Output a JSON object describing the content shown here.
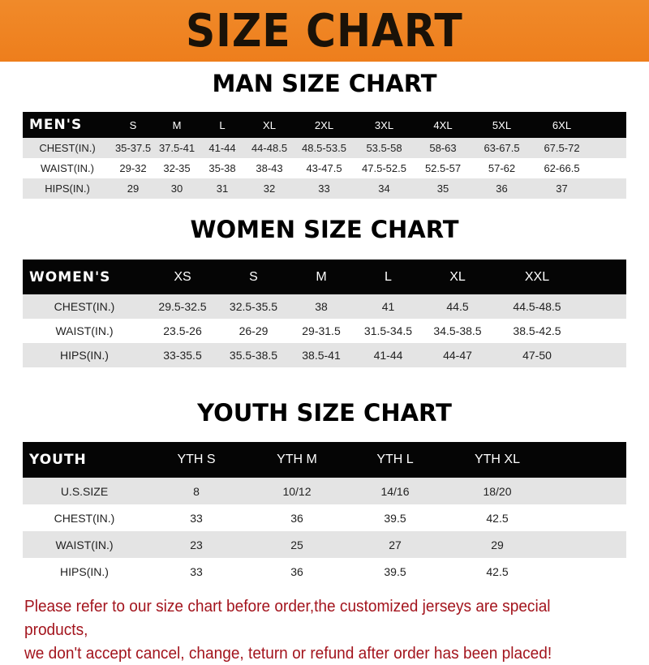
{
  "banner_title": "SIZE CHART",
  "men": {
    "title": "MAN SIZE CHART",
    "header": "MEN'S",
    "sizes": [
      "S",
      "M",
      "L",
      "XL",
      "2XL",
      "3XL",
      "4XL",
      "5XL",
      "6XL"
    ],
    "rows": [
      {
        "label": "CHEST(IN.)",
        "values": [
          "35-37.5",
          "37.5-41",
          "41-44",
          "44-48.5",
          "48.5-53.5",
          "53.5-58",
          "58-63",
          "63-67.5",
          "67.5-72"
        ]
      },
      {
        "label": "WAIST(IN.)",
        "values": [
          "29-32",
          "32-35",
          "35-38",
          "38-43",
          "43-47.5",
          "47.5-52.5",
          "52.5-57",
          "57-62",
          "62-66.5"
        ]
      },
      {
        "label": "HIPS(IN.)",
        "values": [
          "29",
          "30",
          "31",
          "32",
          "33",
          "34",
          "35",
          "36",
          "37"
        ]
      }
    ]
  },
  "women": {
    "title": "WOMEN SIZE CHART",
    "header": "WOMEN'S",
    "sizes": [
      "XS",
      "S",
      "M",
      "L",
      "XL",
      "XXL"
    ],
    "rows": [
      {
        "label": "CHEST(IN.)",
        "values": [
          "29.5-32.5",
          "32.5-35.5",
          "38",
          "41",
          "44.5",
          "44.5-48.5"
        ]
      },
      {
        "label": "WAIST(IN.)",
        "values": [
          "23.5-26",
          "26-29",
          "29-31.5",
          "31.5-34.5",
          "34.5-38.5",
          "38.5-42.5"
        ]
      },
      {
        "label": "HIPS(IN.)",
        "values": [
          "33-35.5",
          "35.5-38.5",
          "38.5-41",
          "41-44",
          "44-47",
          "47-50"
        ]
      }
    ]
  },
  "youth": {
    "title": "YOUTH SIZE CHART",
    "header": "YOUTH",
    "sizes": [
      "YTH S",
      "YTH M",
      "YTH L",
      "YTH XL"
    ],
    "rows": [
      {
        "label": "U.S.SIZE",
        "values": [
          "8",
          "10/12",
          "14/16",
          "18/20"
        ]
      },
      {
        "label": "CHEST(IN.)",
        "values": [
          "33",
          "36",
          "39.5",
          "42.5"
        ]
      },
      {
        "label": "WAIST(IN.)",
        "values": [
          "23",
          "25",
          "27",
          "29"
        ]
      },
      {
        "label": "HIPS(IN.)",
        "values": [
          "33",
          "36",
          "39.5",
          "42.5"
        ]
      }
    ]
  },
  "note": [
    "Please refer to our size chart before order,the customized jerseys are special products,",
    "we don't accept cancel, change, teturn or refund after order has been placed!"
  ]
}
